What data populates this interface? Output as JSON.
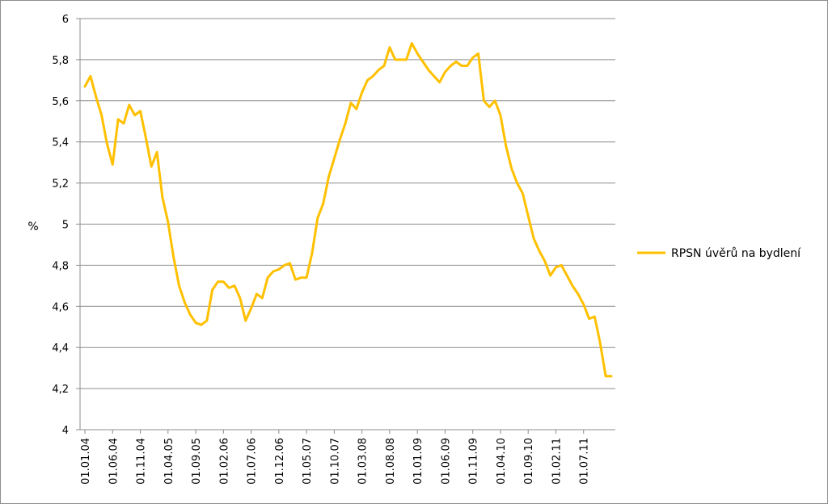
{
  "chart_data": {
    "type": "line",
    "ylabel": "%",
    "xlabel": "",
    "ylim": [
      4,
      6
    ],
    "y_ticks": [
      "4",
      "4,2",
      "4,4",
      "4,6",
      "4,8",
      "5",
      "5,2",
      "5,4",
      "5,6",
      "5,8",
      "6"
    ],
    "x_ticks": [
      "01.01.04",
      "01.06.04",
      "01.11.04",
      "01.04.05",
      "01.09.05",
      "01.02.06",
      "01.07.06",
      "01.12.06",
      "01.05.07",
      "01.10.07",
      "01.03.08",
      "01.08.08",
      "01.01.09",
      "01.06.09",
      "01.11.09",
      "01.04.10",
      "01.09.10",
      "01.02.11",
      "01.07.11"
    ],
    "grid": "horizontal",
    "legend_position": "right",
    "series": [
      {
        "name": "RPSN úvěrů na bydlení",
        "color": "#FFC000",
        "x": [
          "01.01.04",
          "01.02.04",
          "01.03.04",
          "01.04.04",
          "01.05.04",
          "01.06.04",
          "01.07.04",
          "01.08.04",
          "01.09.04",
          "01.10.04",
          "01.11.04",
          "01.12.04",
          "01.01.05",
          "01.02.05",
          "01.03.05",
          "01.04.05",
          "01.05.05",
          "01.06.05",
          "01.07.05",
          "01.08.05",
          "01.09.05",
          "01.10.05",
          "01.11.05",
          "01.12.05",
          "01.01.06",
          "01.02.06",
          "01.03.06",
          "01.04.06",
          "01.05.06",
          "01.06.06",
          "01.07.06",
          "01.08.06",
          "01.09.06",
          "01.10.06",
          "01.11.06",
          "01.12.06",
          "01.01.07",
          "01.02.07",
          "01.03.07",
          "01.04.07",
          "01.05.07",
          "01.06.07",
          "01.07.07",
          "01.08.07",
          "01.09.07",
          "01.10.07",
          "01.11.07",
          "01.12.07",
          "01.01.08",
          "01.02.08",
          "01.03.08",
          "01.04.08",
          "01.05.08",
          "01.06.08",
          "01.07.08",
          "01.08.08",
          "01.09.08",
          "01.10.08",
          "01.11.08",
          "01.12.08",
          "01.01.09",
          "01.02.09",
          "01.03.09",
          "01.04.09",
          "01.05.09",
          "01.06.09",
          "01.07.09",
          "01.08.09",
          "01.09.09",
          "01.10.09",
          "01.11.09",
          "01.12.09",
          "01.01.10",
          "01.02.10",
          "01.03.10",
          "01.04.10",
          "01.05.10",
          "01.06.10",
          "01.07.10",
          "01.08.10",
          "01.09.10",
          "01.10.10",
          "01.11.10",
          "01.12.10",
          "01.01.11",
          "01.02.11",
          "01.03.11",
          "01.04.11",
          "01.05.11",
          "01.06.11",
          "01.07.11",
          "01.08.11",
          "01.09.11",
          "01.10.11",
          "01.11.11",
          "01.12.11"
        ],
        "values": [
          5.67,
          5.72,
          5.62,
          5.53,
          5.39,
          5.29,
          5.51,
          5.49,
          5.58,
          5.53,
          5.55,
          5.42,
          5.28,
          5.35,
          5.13,
          5.01,
          4.84,
          4.7,
          4.62,
          4.56,
          4.52,
          4.51,
          4.53,
          4.68,
          4.72,
          4.72,
          4.69,
          4.7,
          4.64,
          4.53,
          4.59,
          4.66,
          4.64,
          4.74,
          4.77,
          4.78,
          4.8,
          4.81,
          4.73,
          4.74,
          4.74,
          4.86,
          5.03,
          5.1,
          5.23,
          5.32,
          5.41,
          5.49,
          5.59,
          5.56,
          5.64,
          5.7,
          5.72,
          5.75,
          5.77,
          5.86,
          5.8,
          5.8,
          5.8,
          5.88,
          5.83,
          5.79,
          5.75,
          5.72,
          5.69,
          5.74,
          5.77,
          5.79,
          5.77,
          5.77,
          5.81,
          5.83,
          5.6,
          5.57,
          5.6,
          5.53,
          5.38,
          5.27,
          5.2,
          5.15,
          5.04,
          4.93,
          4.87,
          4.82,
          4.75,
          4.79,
          4.8,
          4.75,
          4.7,
          4.66,
          4.61,
          4.54,
          4.55,
          4.42,
          4.26,
          4.26
        ]
      }
    ]
  }
}
